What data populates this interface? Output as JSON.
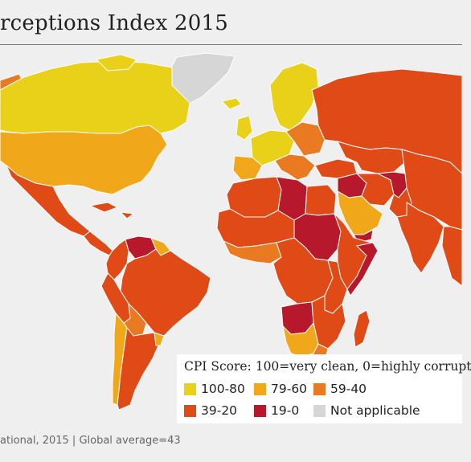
{
  "title": "rceptions Index 2015",
  "legend": {
    "title": "CPI Score: 100=very clean, 0=highly corrupt",
    "items": [
      {
        "label": "100-80",
        "color": "#e8d118"
      },
      {
        "label": "79-60",
        "color": "#f0a81a"
      },
      {
        "label": "59-40",
        "color": "#ea7a22"
      },
      {
        "label": "39-20",
        "color": "#df4a17"
      },
      {
        "label": "19-0",
        "color": "#b8182b"
      },
      {
        "label": "Not applicable",
        "color": "#d6d6d6"
      }
    ]
  },
  "footer": "ational, 2015 | Global average=43",
  "colors": {
    "background": "#efefef",
    "ocean": "#efefef",
    "country_border": "#ffffff"
  }
}
